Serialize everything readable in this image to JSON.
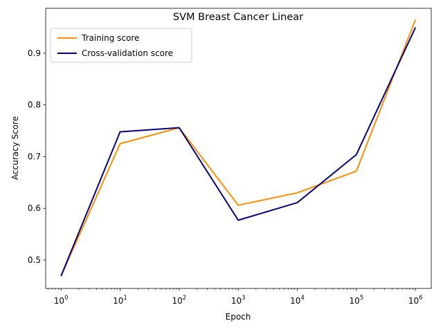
{
  "chart_data": {
    "type": "line",
    "title": "SVM Breast Cancer Linear",
    "xlabel": "Epoch",
    "ylabel": "Accuracy Score",
    "x_scale": "log",
    "x": [
      1,
      10,
      100,
      1000,
      10000,
      100000,
      1000000
    ],
    "xlim": [
      0.55,
      1850000
    ],
    "ylim": [
      0.445,
      0.987
    ],
    "x_ticks": [
      {
        "base": "10",
        "exp": "0"
      },
      {
        "base": "10",
        "exp": "1"
      },
      {
        "base": "10",
        "exp": "2"
      },
      {
        "base": "10",
        "exp": "3"
      },
      {
        "base": "10",
        "exp": "4"
      },
      {
        "base": "10",
        "exp": "5"
      },
      {
        "base": "10",
        "exp": "6"
      }
    ],
    "y_ticks": [
      "0.5",
      "0.6",
      "0.7",
      "0.8",
      "0.9"
    ],
    "series": [
      {
        "name": "Training score",
        "color": "#ff8c00",
        "values": [
          0.469,
          0.725,
          0.756,
          0.606,
          0.63,
          0.672,
          0.965
        ]
      },
      {
        "name": "Cross-validation score",
        "color": "#000080",
        "values": [
          0.469,
          0.748,
          0.756,
          0.577,
          0.611,
          0.704,
          0.95
        ]
      }
    ],
    "legend": "top-left",
    "grid": false
  }
}
